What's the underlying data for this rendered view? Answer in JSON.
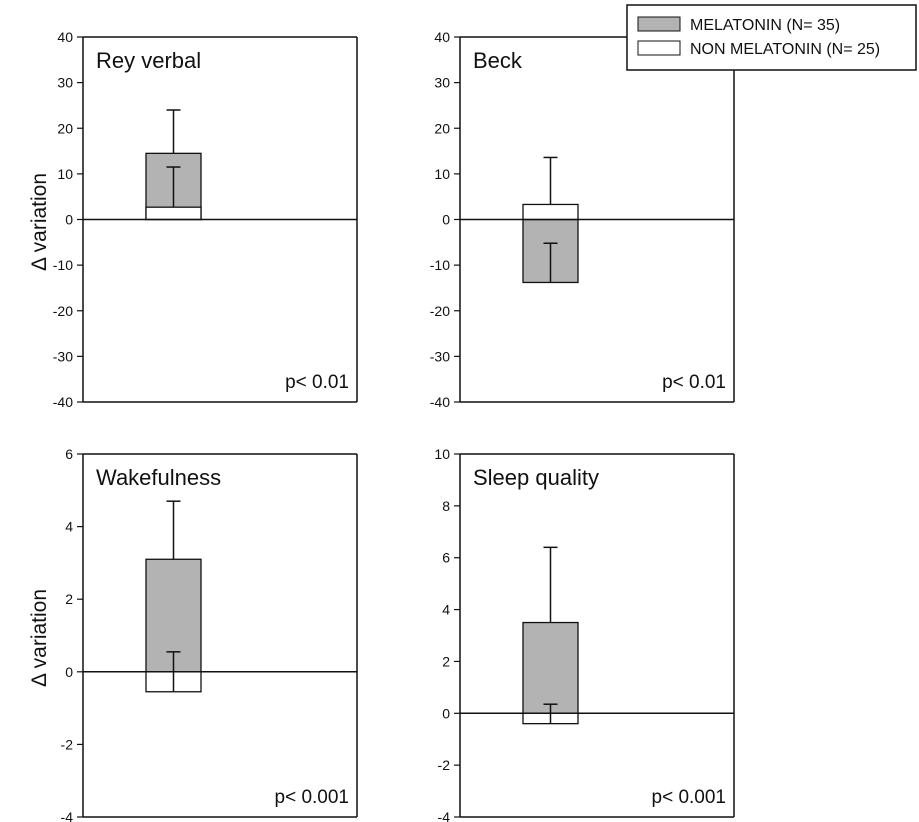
{
  "legend": {
    "items": [
      {
        "label": "MELATONIN (N= 35)",
        "fill": "#b3b3b3"
      },
      {
        "label": "NON MELATONIN (N= 25)",
        "fill": "#ffffff"
      }
    ]
  },
  "ylabel": "Δ variation",
  "colors": {
    "melatonin": "#b3b3b3",
    "non_melatonin": "#ffffff",
    "axis": "#111111"
  },
  "chart_data": [
    {
      "type": "bar",
      "title": "Rey verbal",
      "annotation": "p< 0.01",
      "ylabel": "Δ variation",
      "ylim": [
        -40,
        40
      ],
      "yticks": [
        -40,
        -30,
        -20,
        -10,
        0,
        10,
        20,
        30,
        40
      ],
      "categories": [
        "MELATONIN (N= 35)",
        "NON MELATONIN (N= 25)"
      ],
      "values": [
        14.5,
        2.7
      ],
      "error_up": [
        9.5,
        8.8
      ],
      "grid": false
    },
    {
      "type": "bar",
      "title": "Beck",
      "annotation": "p< 0.01",
      "ylabel": "",
      "ylim": [
        -40,
        40
      ],
      "yticks": [
        -40,
        -30,
        -20,
        -10,
        0,
        10,
        20,
        30,
        40
      ],
      "categories": [
        "MELATONIN (N= 35)",
        "NON MELATONIN (N= 25)"
      ],
      "values": [
        -13.8,
        3.3
      ],
      "error_up": [
        8.6,
        10.3
      ],
      "grid": false
    },
    {
      "type": "bar",
      "title": "Wakefulness",
      "annotation": "p< 0.001",
      "ylabel": "Δ variation",
      "ylim": [
        -4,
        6
      ],
      "yticks": [
        -4,
        -2,
        0,
        2,
        4,
        6
      ],
      "categories": [
        "MELATONIN (N= 35)",
        "NON MELATONIN (N= 25)"
      ],
      "values": [
        3.1,
        -0.55
      ],
      "error_up": [
        1.6,
        1.1
      ],
      "grid": false
    },
    {
      "type": "bar",
      "title": "Sleep quality",
      "annotation": "p< 0.001",
      "ylabel": "",
      "ylim": [
        -4,
        10
      ],
      "yticks": [
        -4,
        -2,
        0,
        2,
        4,
        6,
        8,
        10
      ],
      "categories": [
        "MELATONIN (N= 35)",
        "NON MELATONIN (N= 25)"
      ],
      "values": [
        3.5,
        -0.4
      ],
      "error_up": [
        2.9,
        0.75
      ],
      "grid": false
    }
  ]
}
